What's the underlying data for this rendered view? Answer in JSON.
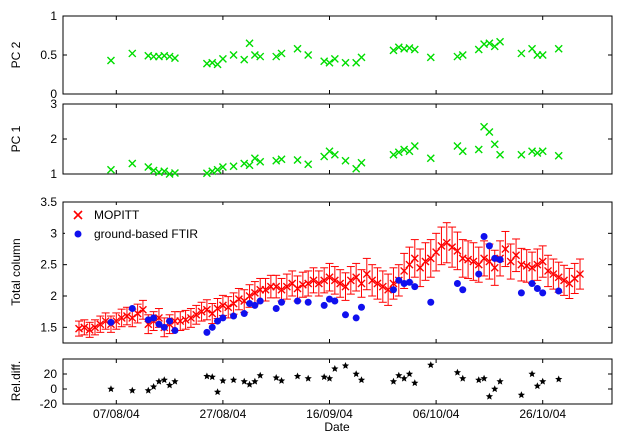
{
  "xlabel": "Date",
  "x_tick_labels": [
    {
      "date": "2004-08-07",
      "label": "07/08/04"
    },
    {
      "date": "2004-08-27",
      "label": "27/08/04"
    },
    {
      "date": "2004-09-16",
      "label": "16/09/04"
    },
    {
      "date": "2004-10-06",
      "label": "06/10/04"
    },
    {
      "date": "2004-10-26",
      "label": "26/10/04"
    }
  ],
  "x_range": [
    "2004-07-28",
    "2004-11-08"
  ],
  "colors": {
    "green": "#00dd00",
    "mopitt": "#ff0000",
    "ftir": "#1010ee",
    "reldiff": "#000000"
  },
  "chart_data": [
    {
      "type": "scatter",
      "ylabel": "PC 2",
      "ylim": [
        0,
        1
      ],
      "y_ticks": [
        0,
        0.5,
        1
      ],
      "marker": "x",
      "series": [
        {
          "x": [
            "2004-08-06",
            "2004-08-10",
            "2004-08-13",
            "2004-08-14",
            "2004-08-15",
            "2004-08-16",
            "2004-08-17",
            "2004-08-18",
            "2004-08-24",
            "2004-08-25",
            "2004-08-26",
            "2004-08-27",
            "2004-08-29",
            "2004-08-31",
            "2004-09-01",
            "2004-09-02",
            "2004-09-03",
            "2004-09-06",
            "2004-09-07",
            "2004-09-10",
            "2004-09-12",
            "2004-09-15",
            "2004-09-16",
            "2004-09-17",
            "2004-09-19",
            "2004-09-21",
            "2004-09-22",
            "2004-09-28",
            "2004-09-29",
            "2004-09-30",
            "2004-10-01",
            "2004-10-02",
            "2004-10-05",
            "2004-10-10",
            "2004-10-11",
            "2004-10-14",
            "2004-10-15",
            "2004-10-16",
            "2004-10-17",
            "2004-10-18",
            "2004-10-22",
            "2004-10-24",
            "2004-10-25",
            "2004-10-26",
            "2004-10-29"
          ],
          "y": [
            0.43,
            0.52,
            0.49,
            0.48,
            0.48,
            0.49,
            0.48,
            0.46,
            0.39,
            0.4,
            0.38,
            0.45,
            0.5,
            0.44,
            0.65,
            0.5,
            0.48,
            0.48,
            0.52,
            0.58,
            0.5,
            0.42,
            0.4,
            0.45,
            0.4,
            0.4,
            0.47,
            0.56,
            0.6,
            0.58,
            0.59,
            0.57,
            0.47,
            0.48,
            0.5,
            0.57,
            0.64,
            0.65,
            0.61,
            0.67,
            0.52,
            0.58,
            0.5,
            0.5,
            0.58
          ]
        }
      ]
    },
    {
      "type": "scatter",
      "ylabel": "PC 1",
      "ylim": [
        1,
        3
      ],
      "y_ticks": [
        1,
        2,
        3
      ],
      "marker": "x",
      "series": [
        {
          "x": [
            "2004-08-06",
            "2004-08-10",
            "2004-08-13",
            "2004-08-14",
            "2004-08-15",
            "2004-08-16",
            "2004-08-17",
            "2004-08-18",
            "2004-08-24",
            "2004-08-25",
            "2004-08-26",
            "2004-08-27",
            "2004-08-29",
            "2004-08-31",
            "2004-09-01",
            "2004-09-02",
            "2004-09-03",
            "2004-09-06",
            "2004-09-07",
            "2004-09-10",
            "2004-09-12",
            "2004-09-15",
            "2004-09-16",
            "2004-09-17",
            "2004-09-19",
            "2004-09-21",
            "2004-09-22",
            "2004-09-28",
            "2004-09-29",
            "2004-09-30",
            "2004-10-01",
            "2004-10-02",
            "2004-10-05",
            "2004-10-10",
            "2004-10-11",
            "2004-10-14",
            "2004-10-15",
            "2004-10-16",
            "2004-10-17",
            "2004-10-18",
            "2004-10-22",
            "2004-10-24",
            "2004-10-25",
            "2004-10-26",
            "2004-10-29"
          ],
          "y": [
            1.12,
            1.3,
            1.2,
            1.1,
            1.05,
            1.08,
            1.0,
            1.03,
            1.02,
            1.08,
            1.12,
            1.2,
            1.22,
            1.3,
            1.25,
            1.45,
            1.35,
            1.38,
            1.42,
            1.4,
            1.28,
            1.5,
            1.65,
            1.55,
            1.38,
            1.15,
            1.32,
            1.55,
            1.62,
            1.7,
            1.65,
            1.8,
            1.45,
            1.8,
            1.65,
            1.7,
            2.35,
            2.2,
            1.85,
            1.55,
            1.55,
            1.65,
            1.6,
            1.65,
            1.52
          ]
        }
      ]
    },
    {
      "type": "scatter",
      "ylabel": "Total column",
      "ylim": [
        1.25,
        3.5
      ],
      "y_ticks": [
        1.5,
        2,
        2.5,
        3,
        3.5
      ],
      "legend": "top-left",
      "series": [
        {
          "name": "MOPITT",
          "marker": "x",
          "error_bars": true,
          "x": [
            "2004-07-31",
            "2004-08-01",
            "2004-08-02",
            "2004-08-03",
            "2004-08-04",
            "2004-08-05",
            "2004-08-06",
            "2004-08-07",
            "2004-08-08",
            "2004-08-09",
            "2004-08-10",
            "2004-08-11",
            "2004-08-12",
            "2004-08-13",
            "2004-08-14",
            "2004-08-15",
            "2004-08-16",
            "2004-08-17",
            "2004-08-18",
            "2004-08-19",
            "2004-08-20",
            "2004-08-21",
            "2004-08-22",
            "2004-08-23",
            "2004-08-24",
            "2004-08-25",
            "2004-08-26",
            "2004-08-27",
            "2004-08-28",
            "2004-08-29",
            "2004-08-30",
            "2004-08-31",
            "2004-09-01",
            "2004-09-02",
            "2004-09-03",
            "2004-09-04",
            "2004-09-05",
            "2004-09-06",
            "2004-09-07",
            "2004-09-08",
            "2004-09-09",
            "2004-09-10",
            "2004-09-11",
            "2004-09-12",
            "2004-09-13",
            "2004-09-14",
            "2004-09-15",
            "2004-09-16",
            "2004-09-17",
            "2004-09-18",
            "2004-09-19",
            "2004-09-20",
            "2004-09-21",
            "2004-09-22",
            "2004-09-23",
            "2004-09-24",
            "2004-09-25",
            "2004-09-26",
            "2004-09-27",
            "2004-09-28",
            "2004-09-29",
            "2004-09-30",
            "2004-10-01",
            "2004-10-02",
            "2004-10-03",
            "2004-10-04",
            "2004-10-05",
            "2004-10-06",
            "2004-10-07",
            "2004-10-08",
            "2004-10-09",
            "2004-10-10",
            "2004-10-11",
            "2004-10-12",
            "2004-10-13",
            "2004-10-14",
            "2004-10-15",
            "2004-10-16",
            "2004-10-17",
            "2004-10-18",
            "2004-10-19",
            "2004-10-20",
            "2004-10-21",
            "2004-10-22",
            "2004-10-23",
            "2004-10-24",
            "2004-10-25",
            "2004-10-26",
            "2004-10-27",
            "2004-10-28",
            "2004-10-29",
            "2004-10-30",
            "2004-10-31",
            "2004-11-01",
            "2004-11-02"
          ],
          "y": [
            1.48,
            1.5,
            1.46,
            1.5,
            1.55,
            1.6,
            1.55,
            1.6,
            1.65,
            1.68,
            1.65,
            1.72,
            1.78,
            1.55,
            1.6,
            1.65,
            1.5,
            1.55,
            1.6,
            1.6,
            1.62,
            1.65,
            1.7,
            1.75,
            1.78,
            1.72,
            1.8,
            1.85,
            1.82,
            1.88,
            1.95,
            1.92,
            2.0,
            2.05,
            2.1,
            2.1,
            2.15,
            2.15,
            2.1,
            2.15,
            2.2,
            2.12,
            2.18,
            2.2,
            2.25,
            2.2,
            2.25,
            2.3,
            2.25,
            2.2,
            2.15,
            2.25,
            2.3,
            2.2,
            2.35,
            2.25,
            2.2,
            2.15,
            2.1,
            2.2,
            2.25,
            2.4,
            2.5,
            2.6,
            2.45,
            2.55,
            2.6,
            2.7,
            2.8,
            2.85,
            2.78,
            2.72,
            2.6,
            2.58,
            2.55,
            2.5,
            2.6,
            2.55,
            2.45,
            2.6,
            2.75,
            2.55,
            2.65,
            2.5,
            2.48,
            2.45,
            2.5,
            2.55,
            2.4,
            2.35,
            2.3,
            2.25,
            2.2,
            2.28,
            2.35
          ],
          "err": [
            0.12,
            0.12,
            0.12,
            0.12,
            0.13,
            0.13,
            0.13,
            0.13,
            0.14,
            0.14,
            0.14,
            0.15,
            0.15,
            0.15,
            0.15,
            0.15,
            0.15,
            0.15,
            0.15,
            0.15,
            0.15,
            0.15,
            0.15,
            0.15,
            0.16,
            0.16,
            0.16,
            0.16,
            0.17,
            0.17,
            0.17,
            0.18,
            0.18,
            0.18,
            0.18,
            0.18,
            0.18,
            0.18,
            0.18,
            0.2,
            0.2,
            0.2,
            0.2,
            0.2,
            0.2,
            0.2,
            0.2,
            0.22,
            0.22,
            0.22,
            0.22,
            0.22,
            0.22,
            0.22,
            0.25,
            0.25,
            0.25,
            0.25,
            0.25,
            0.25,
            0.25,
            0.28,
            0.28,
            0.3,
            0.3,
            0.3,
            0.3,
            0.3,
            0.3,
            0.32,
            0.32,
            0.3,
            0.3,
            0.3,
            0.3,
            0.28,
            0.28,
            0.28,
            0.28,
            0.28,
            0.28,
            0.28,
            0.26,
            0.26,
            0.26,
            0.25,
            0.25,
            0.25,
            0.25,
            0.24,
            0.24,
            0.24,
            0.24,
            0.24,
            0.24
          ]
        },
        {
          "name": "ground-based FTIR",
          "marker": "circle",
          "x": [
            "2004-08-06",
            "2004-08-10",
            "2004-08-13",
            "2004-08-14",
            "2004-08-15",
            "2004-08-16",
            "2004-08-17",
            "2004-08-18",
            "2004-08-24",
            "2004-08-25",
            "2004-08-26",
            "2004-08-27",
            "2004-08-29",
            "2004-08-31",
            "2004-09-01",
            "2004-09-02",
            "2004-09-03",
            "2004-09-06",
            "2004-09-07",
            "2004-09-10",
            "2004-09-12",
            "2004-09-15",
            "2004-09-16",
            "2004-09-17",
            "2004-09-19",
            "2004-09-21",
            "2004-09-22",
            "2004-09-28",
            "2004-09-29",
            "2004-09-30",
            "2004-10-01",
            "2004-10-02",
            "2004-10-05",
            "2004-10-10",
            "2004-10-11",
            "2004-10-14",
            "2004-10-15",
            "2004-10-16",
            "2004-10-17",
            "2004-10-18",
            "2004-10-22",
            "2004-10-24",
            "2004-10-25",
            "2004-10-26",
            "2004-10-29"
          ],
          "y": [
            1.58,
            1.8,
            1.62,
            1.65,
            1.55,
            1.5,
            1.6,
            1.45,
            1.42,
            1.5,
            1.6,
            1.65,
            1.68,
            1.72,
            1.88,
            1.85,
            1.92,
            1.8,
            1.9,
            1.92,
            1.9,
            1.85,
            1.95,
            1.92,
            1.7,
            1.65,
            1.82,
            2.1,
            2.25,
            2.2,
            2.22,
            2.15,
            1.9,
            2.2,
            2.1,
            2.35,
            2.95,
            2.8,
            2.6,
            2.58,
            2.05,
            2.2,
            2.12,
            2.05,
            2.08
          ]
        }
      ]
    },
    {
      "type": "scatter",
      "ylabel": "Rel.diff.",
      "ylim": [
        -20,
        40
      ],
      "y_ticks": [
        -20,
        0,
        20
      ],
      "marker": "star",
      "series": [
        {
          "x": [
            "2004-08-06",
            "2004-08-10",
            "2004-08-13",
            "2004-08-14",
            "2004-08-15",
            "2004-08-16",
            "2004-08-17",
            "2004-08-18",
            "2004-08-24",
            "2004-08-25",
            "2004-08-26",
            "2004-08-27",
            "2004-08-29",
            "2004-08-31",
            "2004-09-01",
            "2004-09-02",
            "2004-09-03",
            "2004-09-06",
            "2004-09-07",
            "2004-09-10",
            "2004-09-12",
            "2004-09-15",
            "2004-09-16",
            "2004-09-17",
            "2004-09-19",
            "2004-09-21",
            "2004-09-22",
            "2004-09-28",
            "2004-09-29",
            "2004-09-30",
            "2004-10-01",
            "2004-10-02",
            "2004-10-05",
            "2004-10-10",
            "2004-10-11",
            "2004-10-14",
            "2004-10-15",
            "2004-10-16",
            "2004-10-17",
            "2004-10-18",
            "2004-10-22",
            "2004-10-24",
            "2004-10-25",
            "2004-10-26",
            "2004-10-29"
          ],
          "y": [
            0,
            -2,
            -2,
            3,
            10,
            12,
            5,
            10,
            17,
            16,
            -4,
            11,
            12,
            10,
            6,
            10,
            18,
            15,
            11,
            17,
            14,
            16,
            14,
            27,
            31,
            20,
            12,
            10,
            18,
            14,
            20,
            8,
            32,
            22,
            14,
            12,
            14,
            -10,
            0,
            10,
            -8,
            20,
            4,
            10,
            13
          ]
        }
      ]
    }
  ]
}
